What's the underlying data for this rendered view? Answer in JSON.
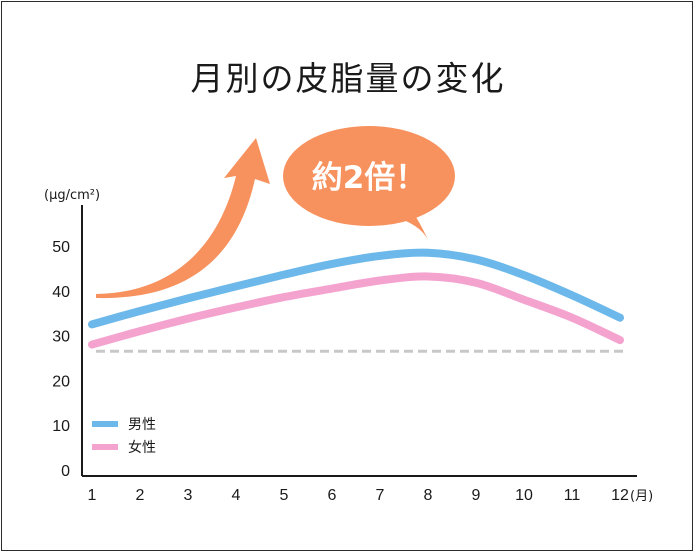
{
  "chart_data": {
    "type": "line",
    "title": "月別の皮脂量の変化",
    "y_unit": "(μg/cm²)",
    "x_unit": "(月)",
    "categories": [
      "1",
      "2",
      "3",
      "4",
      "5",
      "6",
      "7",
      "8",
      "9",
      "10",
      "11",
      "12"
    ],
    "y_ticks": [
      0,
      10,
      20,
      30,
      40,
      50
    ],
    "ylim": [
      0,
      55
    ],
    "series": [
      {
        "name": "男性",
        "color": "#6cb8ea",
        "values": [
          32.5,
          35.5,
          38.3,
          41.0,
          43.6,
          46.0,
          47.8,
          48.5,
          47.0,
          43.5,
          39.0,
          34.0
        ]
      },
      {
        "name": "女性",
        "color": "#f4a3cf",
        "values": [
          28.0,
          31.0,
          33.8,
          36.3,
          38.6,
          40.5,
          42.3,
          43.2,
          41.8,
          38.0,
          34.0,
          29.0
        ]
      }
    ],
    "reference_line": {
      "value": 26.5,
      "color": "#c8c8c8",
      "style": "dashed"
    },
    "annotation": {
      "text": "約2倍！",
      "bubble_color": "#f7925f",
      "arrow_color": "#f7925f"
    },
    "grid": false,
    "legend_position": "bottom-left"
  }
}
